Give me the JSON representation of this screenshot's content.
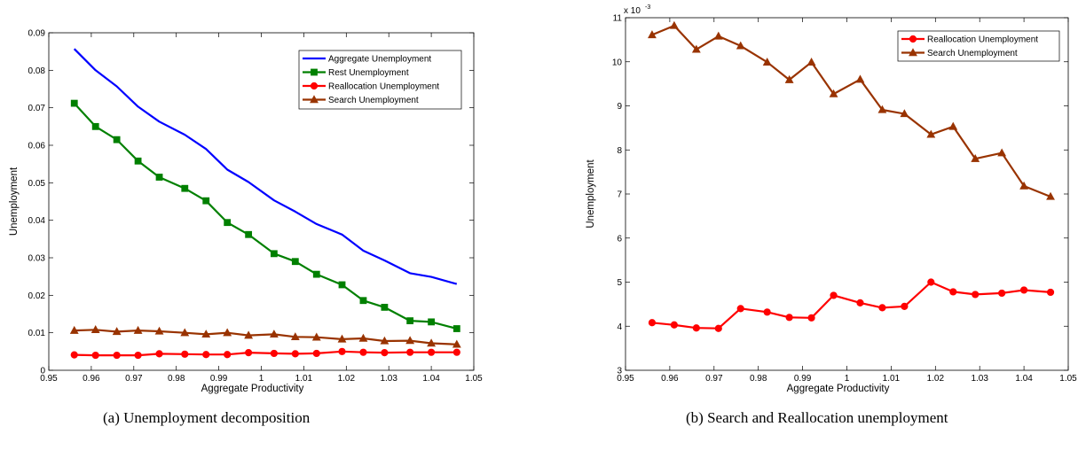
{
  "captions": [
    "(a) Unemployment decomposition",
    "(b) Search and Reallocation unemployment"
  ],
  "chart_data": [
    {
      "type": "line",
      "xlabel": "Aggregate Productivity",
      "ylabel": "Unemployment",
      "xlim": [
        0.95,
        1.05
      ],
      "ylim": [
        0,
        0.09
      ],
      "xticks": [
        0.95,
        0.96,
        0.97,
        0.98,
        0.99,
        1,
        1.01,
        1.02,
        1.03,
        1.04,
        1.05
      ],
      "xtick_labels": [
        "0.95",
        "0.96",
        "0.97",
        "0.98",
        "0.99",
        "1",
        "1.01",
        "1.02",
        "1.03",
        "1.04",
        "1.05"
      ],
      "yticks": [
        0,
        0.01,
        0.02,
        0.03,
        0.04,
        0.05,
        0.06,
        0.07,
        0.08,
        0.09
      ],
      "ytick_labels": [
        "0",
        "0.01",
        "0.02",
        "0.03",
        "0.04",
        "0.05",
        "0.06",
        "0.07",
        "0.08",
        "0.09"
      ],
      "legend_position": "top-right",
      "x": [
        0.956,
        0.961,
        0.966,
        0.971,
        0.976,
        0.982,
        0.987,
        0.992,
        0.997,
        1.003,
        1.008,
        1.013,
        1.019,
        1.024,
        1.029,
        1.035,
        1.04,
        1.046
      ],
      "series": [
        {
          "name": "Aggregate Unemployment",
          "color": "#0000ff",
          "marker": "none",
          "values": [
            0.0857,
            0.08,
            0.0757,
            0.0703,
            0.0663,
            0.0628,
            0.059,
            0.0535,
            0.0502,
            0.0453,
            0.0423,
            0.039,
            0.0362,
            0.0319,
            0.0293,
            0.0259,
            0.0249,
            0.023
          ]
        },
        {
          "name": "Rest Unemployment",
          "color": "#008000",
          "marker": "square",
          "values": [
            0.0712,
            0.065,
            0.0615,
            0.0558,
            0.0515,
            0.0485,
            0.0452,
            0.0394,
            0.0362,
            0.0311,
            0.029,
            0.0256,
            0.0228,
            0.0186,
            0.0168,
            0.0132,
            0.0129,
            0.0111
          ]
        },
        {
          "name": "Reallocation Unemployment",
          "color": "#ff0000",
          "marker": "circle",
          "values": [
            0.0041,
            0.004,
            0.004,
            0.004,
            0.0044,
            0.0043,
            0.0042,
            0.0042,
            0.0047,
            0.0045,
            0.0044,
            0.0045,
            0.005,
            0.0048,
            0.0047,
            0.0048,
            0.0048,
            0.0048
          ]
        },
        {
          "name": "Search Unemployment",
          "color": "#993300",
          "marker": "triangle",
          "values": [
            0.0106,
            0.0108,
            0.0103,
            0.0106,
            0.0104,
            0.01,
            0.0096,
            0.01,
            0.0093,
            0.0096,
            0.0089,
            0.0088,
            0.0083,
            0.0085,
            0.0078,
            0.0079,
            0.0072,
            0.0069
          ]
        }
      ]
    },
    {
      "type": "line",
      "xlabel": "Aggregate Productivity",
      "ylabel": "Unemployment",
      "scale_label": "x 10",
      "scale_exponent": "-3",
      "xlim": [
        0.95,
        1.05
      ],
      "ylim": [
        3,
        11
      ],
      "xticks": [
        0.95,
        0.96,
        0.97,
        0.98,
        0.99,
        1,
        1.01,
        1.02,
        1.03,
        1.04,
        1.05
      ],
      "xtick_labels": [
        "0.95",
        "0.96",
        "0.97",
        "0.98",
        "0.99",
        "1",
        "1.01",
        "1.02",
        "1.03",
        "1.04",
        "1.05"
      ],
      "yticks": [
        3,
        4,
        5,
        6,
        7,
        8,
        9,
        10,
        11
      ],
      "ytick_labels": [
        "3",
        "4",
        "5",
        "6",
        "7",
        "8",
        "9",
        "10",
        "11"
      ],
      "legend_position": "top-right",
      "x": [
        0.956,
        0.961,
        0.966,
        0.971,
        0.976,
        0.982,
        0.987,
        0.992,
        0.997,
        1.003,
        1.008,
        1.013,
        1.019,
        1.024,
        1.029,
        1.035,
        1.04,
        1.046
      ],
      "series": [
        {
          "name": "Reallocation Unemployment",
          "color": "#ff0000",
          "marker": "circle",
          "values": [
            4.08,
            4.03,
            3.96,
            3.95,
            4.4,
            4.32,
            4.2,
            4.19,
            4.7,
            4.53,
            4.42,
            4.45,
            5.0,
            4.78,
            4.72,
            4.75,
            4.82,
            4.77
          ]
        },
        {
          "name": "Search Unemployment",
          "color": "#993300",
          "marker": "triangle",
          "values": [
            10.61,
            10.82,
            10.28,
            10.58,
            10.36,
            9.99,
            9.59,
            9.99,
            9.27,
            9.6,
            8.91,
            8.82,
            8.35,
            8.53,
            7.8,
            7.93,
            7.18,
            6.94
          ]
        }
      ]
    }
  ]
}
